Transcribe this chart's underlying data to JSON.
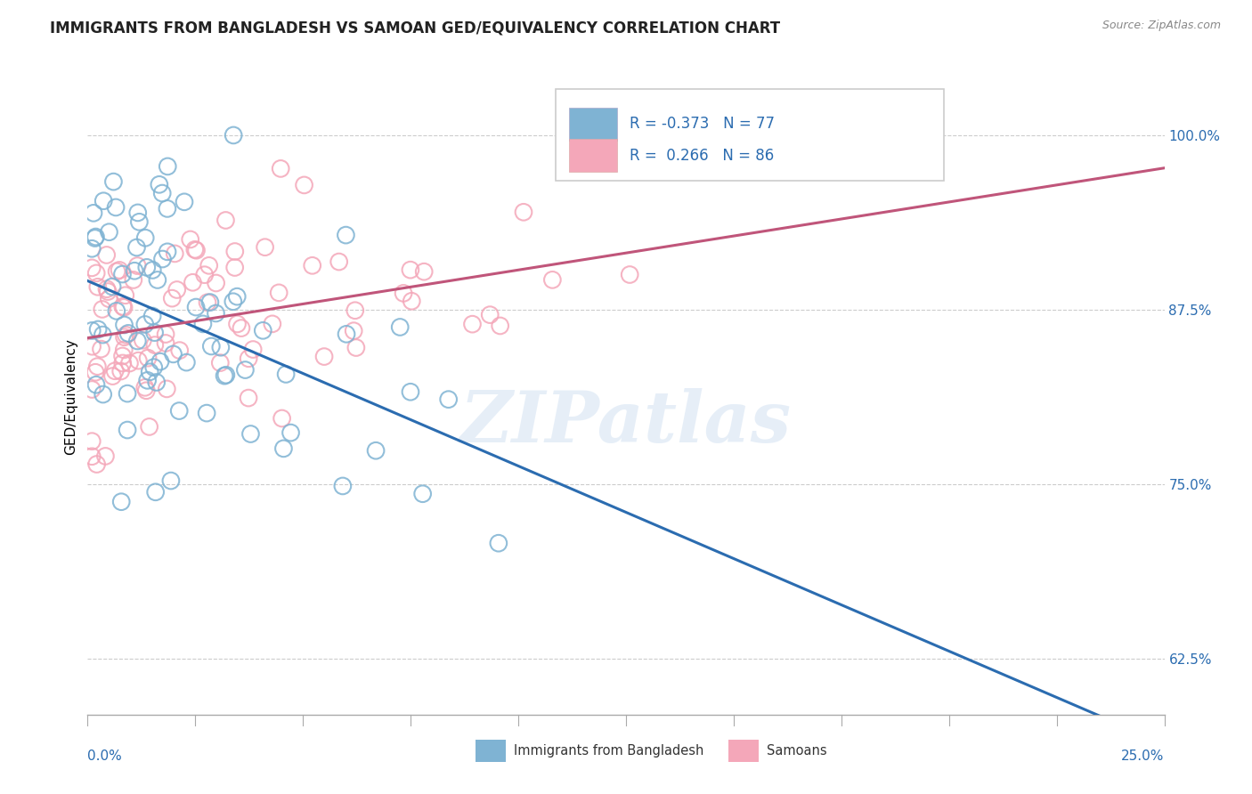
{
  "title": "IMMIGRANTS FROM BANGLADESH VS SAMOAN GED/EQUIVALENCY CORRELATION CHART",
  "source": "Source: ZipAtlas.com",
  "ylabel": "GED/Equivalency",
  "ytick_labels": [
    "62.5%",
    "75.0%",
    "87.5%",
    "100.0%"
  ],
  "ytick_values": [
    0.625,
    0.75,
    0.875,
    1.0
  ],
  "xlim": [
    0.0,
    0.25
  ],
  "ylim": [
    0.585,
    1.04
  ],
  "blue_color": "#7fb3d3",
  "pink_color": "#f4a7b9",
  "blue_line_color": "#2b6cb0",
  "pink_line_color": "#c0557a",
  "watermark": "ZIPatlas",
  "blue_r": -0.373,
  "blue_n": 77,
  "pink_r": 0.266,
  "pink_n": 86,
  "title_fontsize": 12,
  "tick_fontsize": 11,
  "legend_text_color": "#2b6cb0",
  "legend_label_color": "#222222"
}
